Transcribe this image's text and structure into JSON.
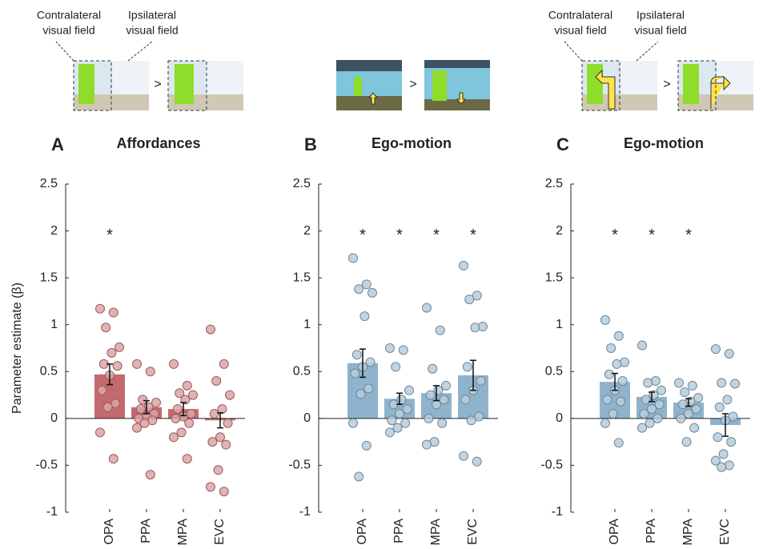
{
  "illustrations": [
    {
      "left_label": [
        "Contralateral",
        "visual field"
      ],
      "right_label": [
        "Ipsilateral",
        "visual field"
      ],
      "separator": ">"
    },
    {
      "separator": ">"
    },
    {
      "left_label": [
        "Contralateral",
        "visual field"
      ],
      "right_label": [
        "Ipsilateral",
        "visual field"
      ],
      "separator": ">"
    }
  ],
  "chart_data": [
    {
      "type": "bar",
      "panel": "A",
      "title": "Affordances",
      "ylabel": "Parameter estimate (β)",
      "categories": [
        "OPA",
        "PPA",
        "MPA",
        "EVC"
      ],
      "values": [
        0.47,
        0.12,
        0.1,
        -0.02
      ],
      "errors": [
        0.11,
        0.07,
        0.07,
        0.08
      ],
      "significance": [
        "*",
        null,
        null,
        null
      ],
      "points": [
        [
          1.17,
          1.13,
          0.97,
          0.76,
          0.7,
          0.58,
          0.56,
          0.46,
          0.3,
          0.16,
          0.12,
          -0.15,
          -0.43
        ],
        [
          0.58,
          0.5,
          0.2,
          0.17,
          0.12,
          0.1,
          0.05,
          0.02,
          0.0,
          -0.02,
          -0.05,
          -0.1,
          -0.6
        ],
        [
          0.58,
          0.35,
          0.27,
          0.25,
          0.2,
          0.1,
          0.05,
          0.02,
          0.0,
          -0.05,
          -0.15,
          -0.2,
          -0.43
        ],
        [
          0.95,
          0.58,
          0.4,
          0.25,
          0.1,
          0.05,
          -0.05,
          -0.2,
          -0.25,
          -0.28,
          -0.55,
          -0.73,
          -0.78
        ]
      ],
      "color": "#c46a6e",
      "point_color": "#dba4a6",
      "point_edge": "#9a5a5c",
      "ylim": [
        -1,
        2.5
      ],
      "yticks": [
        -1,
        -0.5,
        0,
        0.5,
        1,
        1.5,
        2,
        2.5
      ]
    },
    {
      "type": "bar",
      "panel": "B",
      "title": "Ego-motion",
      "categories": [
        "OPA",
        "PPA",
        "MPA",
        "EVC"
      ],
      "values": [
        0.59,
        0.21,
        0.27,
        0.46
      ],
      "errors": [
        0.15,
        0.06,
        0.08,
        0.16
      ],
      "significance": [
        "*",
        "*",
        "*",
        "*"
      ],
      "points": [
        [
          1.71,
          1.43,
          1.38,
          1.34,
          1.09,
          0.68,
          0.6,
          0.55,
          0.48,
          0.32,
          0.26,
          -0.05,
          -0.29,
          -0.62
        ],
        [
          0.75,
          0.73,
          0.55,
          0.3,
          0.2,
          0.15,
          0.1,
          0.05,
          -0.02,
          -0.05,
          -0.1,
          -0.15
        ],
        [
          1.18,
          0.94,
          0.53,
          0.35,
          0.3,
          0.25,
          0.2,
          0.15,
          0.0,
          -0.05,
          -0.25,
          -0.28
        ],
        [
          1.63,
          1.31,
          1.27,
          0.98,
          0.97,
          0.55,
          0.4,
          0.3,
          0.2,
          0.02,
          -0.02,
          -0.4,
          -0.46
        ]
      ],
      "color": "#8fb3cc",
      "point_color": "#b8cddc",
      "point_edge": "#6d8699",
      "ylim": [
        -1,
        2.5
      ],
      "yticks": [
        -1,
        -0.5,
        0,
        0.5,
        1,
        1.5,
        2,
        2.5
      ]
    },
    {
      "type": "bar",
      "panel": "C",
      "title": "Ego-motion",
      "categories": [
        "OPA",
        "PPA",
        "MPA",
        "EVC"
      ],
      "values": [
        0.39,
        0.23,
        0.17,
        -0.07
      ],
      "errors": [
        0.09,
        0.05,
        0.04,
        0.12
      ],
      "significance": [
        "*",
        "*",
        "*",
        null
      ],
      "points": [
        [
          1.05,
          0.88,
          0.75,
          0.6,
          0.58,
          0.47,
          0.4,
          0.3,
          0.2,
          0.18,
          0.05,
          -0.05,
          -0.26
        ],
        [
          0.78,
          0.4,
          0.38,
          0.3,
          0.25,
          0.2,
          0.15,
          0.1,
          0.05,
          0.0,
          -0.05,
          -0.1
        ],
        [
          0.38,
          0.35,
          0.28,
          0.22,
          0.18,
          0.15,
          0.1,
          0.05,
          0.0,
          -0.1,
          -0.25
        ],
        [
          0.74,
          0.69,
          0.38,
          0.37,
          0.2,
          0.12,
          0.02,
          -0.02,
          -0.2,
          -0.25,
          -0.38,
          -0.45,
          -0.5,
          -0.52
        ]
      ],
      "color": "#8fb3cc",
      "point_color": "#b8cddc",
      "point_edge": "#6d8699",
      "ylim": [
        -1,
        2.5
      ],
      "yticks": [
        -1,
        -0.5,
        0,
        0.5,
        1,
        1.5,
        2,
        2.5
      ]
    }
  ]
}
